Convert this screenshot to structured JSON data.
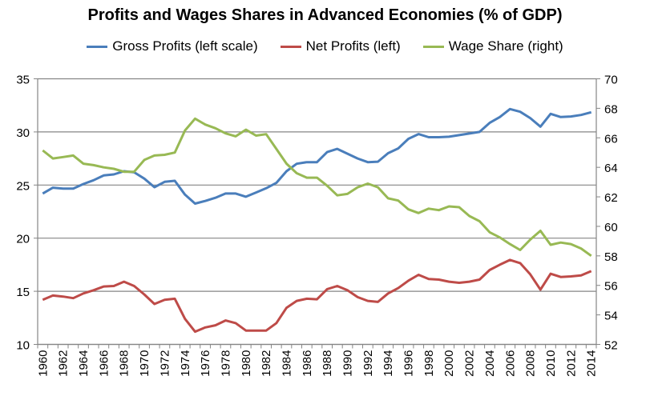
{
  "chart_data": {
    "type": "line",
    "title": "Profits and Wages Shares in Advanced Economies (% of GDP)",
    "x": [
      1960,
      1961,
      1962,
      1963,
      1964,
      1965,
      1966,
      1967,
      1968,
      1969,
      1970,
      1971,
      1972,
      1973,
      1974,
      1975,
      1976,
      1977,
      1978,
      1979,
      1980,
      1981,
      1982,
      1983,
      1984,
      1985,
      1986,
      1987,
      1988,
      1989,
      1990,
      1991,
      1992,
      1993,
      1994,
      1995,
      1996,
      1997,
      1998,
      1999,
      2000,
      2001,
      2002,
      2003,
      2004,
      2005,
      2006,
      2007,
      2008,
      2009,
      2010,
      2011,
      2012,
      2013,
      2014
    ],
    "x_tick_labels": [
      "1960",
      "1962",
      "1964",
      "1966",
      "1968",
      "1970",
      "1972",
      "1974",
      "1976",
      "1978",
      "1980",
      "1982",
      "1984",
      "1986",
      "1988",
      "1990",
      "1992",
      "1994",
      "1996",
      "1998",
      "2000",
      "2002",
      "2004",
      "2006",
      "2008",
      "2010",
      "2012",
      "2014"
    ],
    "y_left": {
      "range": [
        10,
        35
      ],
      "ticks": [
        "10",
        "15",
        "20",
        "25",
        "30",
        "35"
      ]
    },
    "y_right": {
      "range": [
        52,
        70
      ],
      "ticks": [
        "52",
        "54",
        "56",
        "58",
        "60",
        "62",
        "64",
        "66",
        "68",
        "70"
      ]
    },
    "grid": true,
    "legend_position": "top",
    "series": [
      {
        "name": "Gross Profits (left scale)",
        "axis": "left",
        "color": "#4A7EBB",
        "values": [
          24.2,
          24.75,
          24.67,
          24.67,
          25.1,
          25.45,
          25.9,
          26.0,
          26.3,
          26.2,
          25.6,
          24.8,
          25.3,
          25.4,
          24.1,
          23.25,
          23.5,
          23.8,
          24.2,
          24.2,
          23.9,
          24.3,
          24.7,
          25.2,
          26.3,
          27.0,
          27.15,
          27.15,
          28.1,
          28.4,
          27.95,
          27.5,
          27.15,
          27.2,
          28.0,
          28.45,
          29.35,
          29.8,
          29.5,
          29.5,
          29.55,
          29.7,
          29.85,
          30.0,
          30.85,
          31.4,
          32.15,
          31.9,
          31.3,
          30.5,
          31.7,
          31.4,
          31.45,
          31.6,
          31.85
        ]
      },
      {
        "name": "Net Profits (left)",
        "axis": "left",
        "color": "#BE4B48",
        "values": [
          14.2,
          14.6,
          14.5,
          14.35,
          14.8,
          15.1,
          15.45,
          15.5,
          15.9,
          15.5,
          14.7,
          13.8,
          14.2,
          14.3,
          12.4,
          11.2,
          11.6,
          11.8,
          12.25,
          12.0,
          11.3,
          11.3,
          11.3,
          12.0,
          13.45,
          14.1,
          14.3,
          14.25,
          15.2,
          15.5,
          15.1,
          14.45,
          14.1,
          14.0,
          14.8,
          15.3,
          16.0,
          16.55,
          16.15,
          16.1,
          15.9,
          15.8,
          15.9,
          16.1,
          17.0,
          17.5,
          17.95,
          17.65,
          16.6,
          15.15,
          16.65,
          16.35,
          16.4,
          16.5,
          16.9
        ]
      },
      {
        "name": "Wage Share (right)",
        "axis": "right",
        "color": "#98B954",
        "values": [
          65.15,
          64.6,
          64.7,
          64.8,
          64.25,
          64.15,
          64.0,
          63.9,
          63.7,
          63.7,
          64.5,
          64.8,
          64.85,
          65.0,
          66.5,
          67.3,
          66.9,
          66.65,
          66.3,
          66.1,
          66.55,
          66.15,
          66.25,
          65.25,
          64.25,
          63.6,
          63.3,
          63.3,
          62.75,
          62.1,
          62.2,
          62.65,
          62.9,
          62.65,
          61.9,
          61.75,
          61.15,
          60.9,
          61.2,
          61.1,
          61.35,
          61.3,
          60.7,
          60.35,
          59.6,
          59.25,
          58.8,
          58.4,
          59.1,
          59.7,
          58.75,
          58.9,
          58.8,
          58.5,
          58.0
        ]
      }
    ]
  }
}
